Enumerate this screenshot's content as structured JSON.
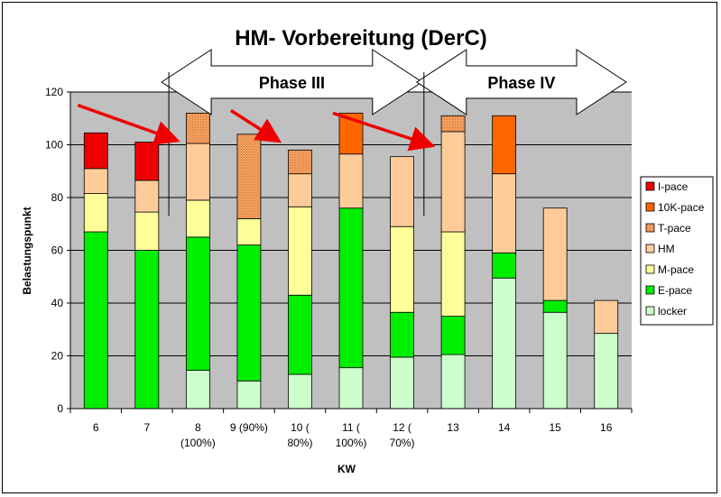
{
  "chart_data": {
    "type": "bar",
    "stacked": true,
    "title": "HM- Vorbereitung (DerC)",
    "xlabel": "KW",
    "ylabel": "Belastungspunkt",
    "ylim": [
      0,
      120
    ],
    "yticks": [
      0,
      20,
      40,
      60,
      80,
      100,
      120
    ],
    "grid": true,
    "legend_position": "right",
    "categories": [
      "6",
      "7",
      "8",
      "9",
      "10",
      "11",
      "12",
      "13",
      "14",
      "15",
      "16"
    ],
    "category_labels": [
      [
        "6"
      ],
      [
        "7"
      ],
      [
        "8",
        "(100%)"
      ],
      [
        "9 (90%)"
      ],
      [
        "10 (",
        "80%)"
      ],
      [
        "11 (",
        "100%)"
      ],
      [
        "12 (",
        "70%)"
      ],
      [
        "13"
      ],
      [
        "14"
      ],
      [
        "15"
      ],
      [
        "16"
      ]
    ],
    "series": [
      {
        "name": "locker",
        "color": "#CCFFCC",
        "values": [
          0,
          0,
          14.5,
          10.5,
          13,
          15.5,
          19.5,
          20.5,
          49.5,
          36.5,
          28.5
        ]
      },
      {
        "name": "E-pace",
        "color": "#00EE00",
        "values": [
          67,
          60,
          50.5,
          51.5,
          30,
          60.5,
          17,
          14.5,
          9.5,
          4.5,
          0
        ]
      },
      {
        "name": "M-pace",
        "color": "#FFFF99",
        "values": [
          14.5,
          14.5,
          14,
          10,
          33.5,
          0,
          32.5,
          32,
          0,
          0,
          0
        ]
      },
      {
        "name": "HM",
        "color": "#FFCC99",
        "values": [
          9.5,
          12,
          21.5,
          0,
          12.5,
          20.5,
          26.5,
          38,
          30,
          35,
          12.5
        ]
      },
      {
        "name": "T-pace",
        "color": "#F8A868",
        "pattern": true,
        "values": [
          0,
          0,
          11.5,
          32,
          9,
          0,
          0,
          6,
          0,
          0,
          0
        ]
      },
      {
        "name": "10K-pace",
        "color": "#FF6600",
        "values": [
          0,
          0,
          0,
          0,
          0,
          15.5,
          0,
          0,
          22,
          0,
          0
        ]
      },
      {
        "name": "I-pace",
        "color": "#EE0000",
        "values": [
          13.5,
          14.5,
          0,
          0,
          0,
          0,
          0,
          0,
          0,
          0,
          0
        ]
      }
    ],
    "legend_order": [
      "I-pace",
      "10K-pace",
      "T-pace",
      "HM",
      "M-pace",
      "E-pace",
      "locker"
    ],
    "annotations": [
      {
        "type": "phase_arrow",
        "label": "Phase III",
        "from_category": "8",
        "to_category": "12"
      },
      {
        "type": "phase_arrow",
        "label": "Phase IV",
        "from_category": "13",
        "to_category": "16"
      },
      {
        "type": "trend_arrow",
        "from_category": "6",
        "to_category": "8",
        "from_y": 115,
        "to_y": 102
      },
      {
        "type": "trend_arrow",
        "from_category": "9",
        "to_category": "10",
        "from_y": 113,
        "to_y": 102
      },
      {
        "type": "trend_arrow",
        "from_category": "11",
        "to_category": "13",
        "from_y": 112,
        "to_y": 100
      }
    ],
    "colors": {
      "plot_background": "#C0C0C0",
      "trend_arrow": "#EE0000"
    }
  }
}
